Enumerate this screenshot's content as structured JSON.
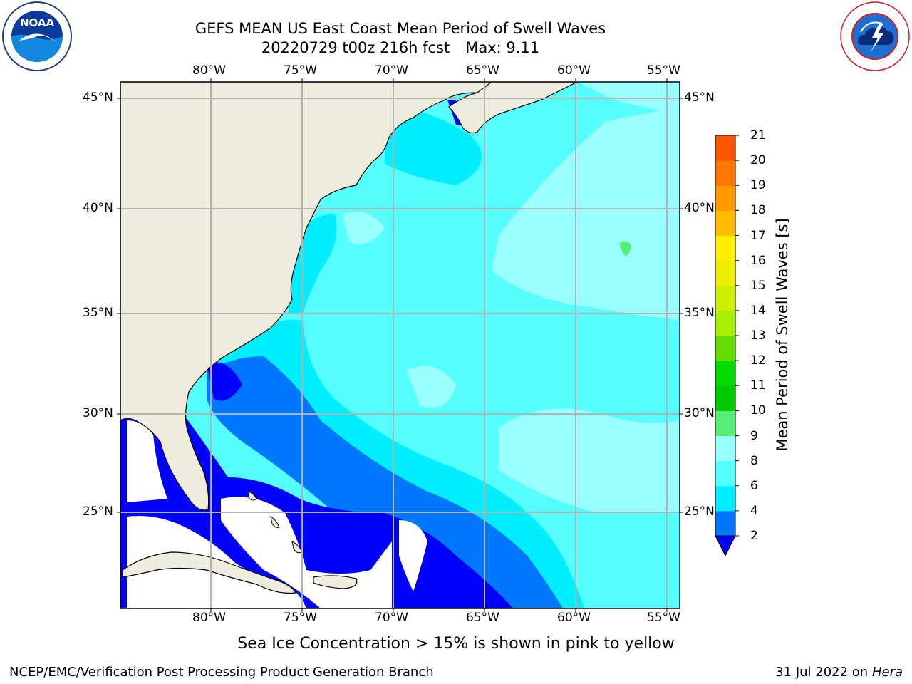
{
  "title_line1": "GEFS MEAN US East Coast Mean Period of Swell Waves",
  "title_date": "20220729 t00z 216h fcst",
  "title_max": "Max: 9.11",
  "logos": {
    "left": "NOAA",
    "right": "NATIONAL WEATHER SERVICE"
  },
  "map": {
    "lon_ticks": [
      "80°W",
      "75°W",
      "70°W",
      "65°W",
      "60°W",
      "55°W"
    ],
    "lat_ticks": [
      "45°N",
      "40°N",
      "35°N",
      "30°N",
      "25°N"
    ],
    "lon_range": [
      -85,
      -54.3
    ],
    "lat_range": [
      20.3,
      46.3
    ],
    "land_color": "#eeeddd",
    "no_data_color": "#ffffff",
    "grid_color": "#b3b3b3"
  },
  "colorbar": {
    "label": "Mean Period of Swell Waves [s]",
    "ticks": [
      "2",
      "4",
      "6",
      "8",
      "9",
      "10",
      "11",
      "12",
      "13",
      "14",
      "15",
      "16",
      "17",
      "18",
      "19",
      "20",
      "21"
    ],
    "bounds": [
      2,
      4,
      6,
      8,
      9,
      10,
      11,
      12,
      13,
      14,
      15,
      16,
      17,
      18,
      19,
      20,
      21
    ],
    "colors": [
      "#0077ff",
      "#00eeff",
      "#55ffff",
      "#99ffff",
      "#55ee77",
      "#00cc00",
      "#00dd00",
      "#66dd00",
      "#aaee00",
      "#ccee00",
      "#eeee00",
      "#ffee00",
      "#ffbb00",
      "#ff9900",
      "#ff7700",
      "#ff5500",
      "#ff3300",
      "#ff0000"
    ],
    "extend_color": "#0000ff"
  },
  "note": "Sea Ice Concentration > 15% is shown in pink to yellow",
  "footer": {
    "left": "NCEP/EMC/Verification Post Processing Product Generation Branch",
    "date": "31 Jul 2022 on ",
    "host": "Hera"
  }
}
